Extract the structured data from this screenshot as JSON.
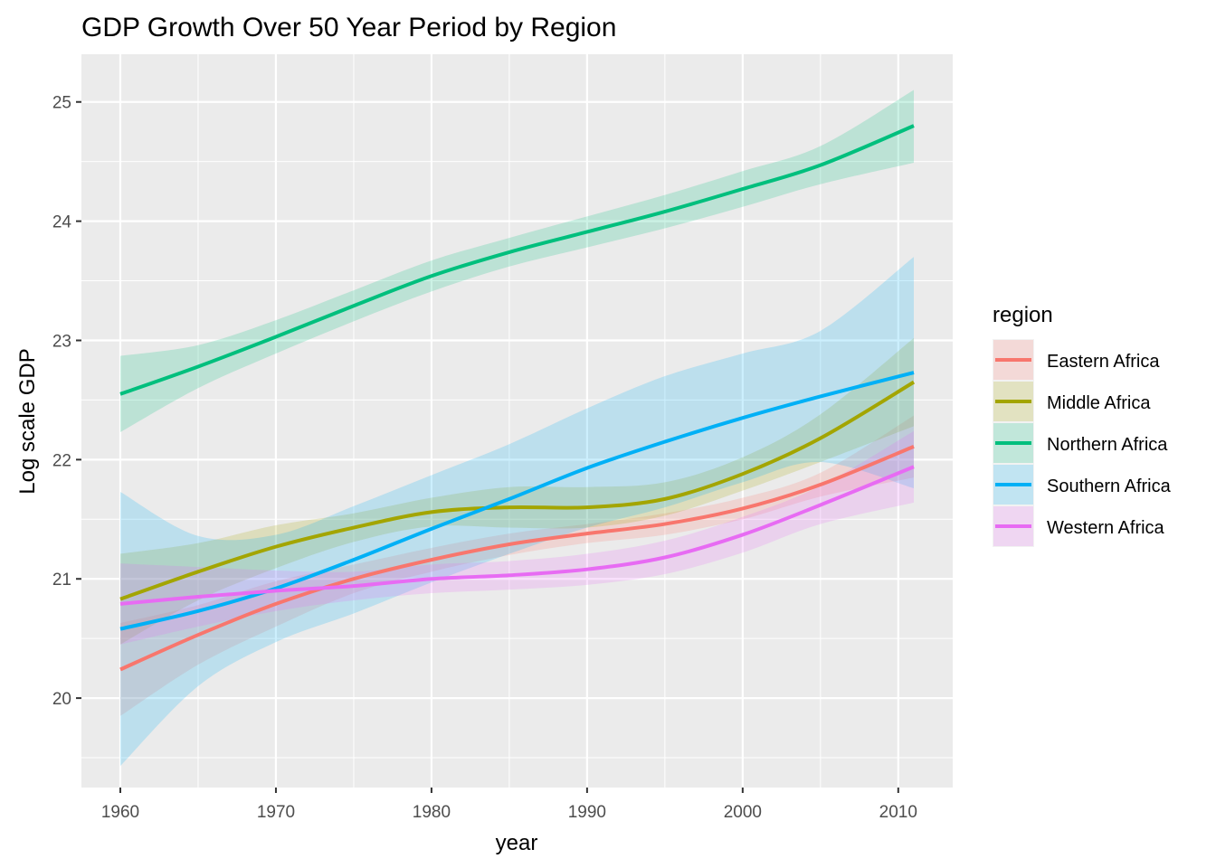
{
  "chart_data": {
    "type": "line",
    "title": "GDP Growth Over 50 Year Period by Region",
    "xlabel": "year",
    "ylabel": "Log scale GDP",
    "xlim": [
      1957.5,
      2013.5
    ],
    "ylim": [
      19.25,
      25.4
    ],
    "x_ticks": [
      1960,
      1970,
      1980,
      1990,
      2000,
      2010
    ],
    "y_ticks": [
      20,
      21,
      22,
      23,
      24,
      25
    ],
    "grid": true,
    "background": "#ebebeb",
    "legend": {
      "title": "region",
      "position": "right"
    },
    "x": [
      1960,
      1965,
      1970,
      1975,
      1980,
      1985,
      1990,
      1995,
      2000,
      2005,
      2011
    ],
    "series": [
      {
        "name": "Eastern Africa",
        "color": "#F8766D",
        "values": [
          20.24,
          20.53,
          20.79,
          21.0,
          21.16,
          21.29,
          21.38,
          21.46,
          21.59,
          21.79,
          22.11
        ],
        "lower": [
          19.85,
          20.28,
          20.6,
          20.88,
          21.06,
          21.2,
          21.3,
          21.37,
          21.5,
          21.69,
          21.85
        ],
        "upper": [
          20.63,
          20.78,
          20.98,
          21.12,
          21.26,
          21.38,
          21.46,
          21.55,
          21.68,
          21.89,
          22.37
        ]
      },
      {
        "name": "Middle Africa",
        "color": "#A3A500",
        "values": [
          20.83,
          21.06,
          21.27,
          21.43,
          21.56,
          21.6,
          21.6,
          21.67,
          21.88,
          22.18,
          22.65
        ],
        "lower": [
          20.45,
          20.82,
          21.09,
          21.31,
          21.44,
          21.43,
          21.43,
          21.53,
          21.74,
          21.98,
          22.28
        ],
        "upper": [
          21.21,
          21.3,
          21.45,
          21.55,
          21.68,
          21.77,
          21.77,
          21.81,
          22.02,
          22.38,
          23.02
        ]
      },
      {
        "name": "Northern Africa",
        "color": "#00BF7D",
        "values": [
          22.55,
          22.78,
          23.03,
          23.29,
          23.54,
          23.74,
          23.91,
          24.08,
          24.27,
          24.47,
          24.8
        ],
        "lower": [
          22.23,
          22.6,
          22.89,
          23.16,
          23.41,
          23.62,
          23.78,
          23.94,
          24.12,
          24.31,
          24.49
        ],
        "upper": [
          22.87,
          22.96,
          23.17,
          23.42,
          23.67,
          23.86,
          24.04,
          24.22,
          24.42,
          24.63,
          25.1
        ]
      },
      {
        "name": "Southern Africa",
        "color": "#00B0F6",
        "values": [
          20.58,
          20.73,
          20.92,
          21.16,
          21.42,
          21.67,
          21.93,
          22.15,
          22.35,
          22.53,
          22.73
        ],
        "lower": [
          19.43,
          20.1,
          20.47,
          20.71,
          20.97,
          21.21,
          21.43,
          21.6,
          21.81,
          21.98,
          21.76
        ],
        "upper": [
          21.73,
          21.36,
          21.37,
          21.61,
          21.87,
          22.13,
          22.43,
          22.7,
          22.89,
          23.08,
          23.7
        ]
      },
      {
        "name": "Western Africa",
        "color": "#E76BF3",
        "values": [
          20.79,
          20.85,
          20.9,
          20.94,
          21.0,
          21.03,
          21.08,
          21.18,
          21.37,
          21.62,
          21.94
        ],
        "lower": [
          20.45,
          20.6,
          20.73,
          20.82,
          20.88,
          20.91,
          20.95,
          21.04,
          21.22,
          21.46,
          21.64
        ],
        "upper": [
          21.13,
          21.1,
          21.07,
          21.06,
          21.12,
          21.15,
          21.21,
          21.32,
          21.52,
          21.78,
          22.24
        ]
      }
    ]
  }
}
